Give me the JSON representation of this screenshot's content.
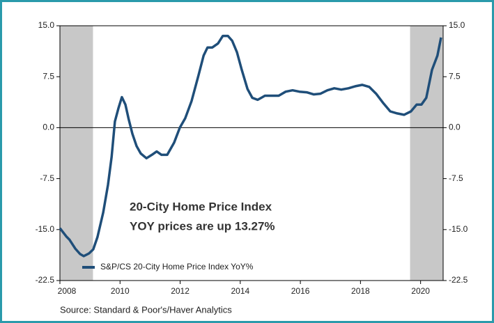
{
  "chart_data": {
    "type": "line",
    "annotation": [
      "20-City Home Price Index",
      "YOY prices are up 13.27%"
    ],
    "source": "Source:  Standard & Poor's/Haver Analytics",
    "x": [
      2008.0,
      2008.21,
      2008.32,
      2008.51,
      2008.67,
      2008.79,
      2008.97,
      2009.11,
      2009.25,
      2009.44,
      2009.6,
      2009.72,
      2009.83,
      2009.95,
      2010.06,
      2010.18,
      2010.29,
      2010.41,
      2010.55,
      2010.69,
      2010.88,
      2011.06,
      2011.22,
      2011.38,
      2011.57,
      2011.8,
      2011.99,
      2012.17,
      2012.38,
      2012.61,
      2012.78,
      2012.91,
      2013.07,
      2013.26,
      2013.42,
      2013.59,
      2013.73,
      2013.89,
      2014.05,
      2014.24,
      2014.4,
      2014.58,
      2014.7,
      2014.82,
      2015.05,
      2015.28,
      2015.51,
      2015.74,
      2015.97,
      2016.21,
      2016.44,
      2016.67,
      2016.9,
      2017.13,
      2017.36,
      2017.6,
      2017.83,
      2018.06,
      2018.29,
      2018.52,
      2018.76,
      2018.99,
      2019.22,
      2019.45,
      2019.68,
      2019.87,
      2020.03,
      2020.19,
      2020.38,
      2020.56,
      2020.68
    ],
    "series": [
      {
        "name": "S&P/CS 20-City Home Price Index YoY%",
        "color": "#1f4e79",
        "values": [
          -14.8,
          -16.0,
          -16.5,
          -17.8,
          -18.6,
          -18.9,
          -18.5,
          -17.9,
          -16.1,
          -12.5,
          -8.4,
          -4.3,
          0.9,
          2.9,
          4.5,
          3.4,
          1.2,
          -0.9,
          -2.7,
          -3.8,
          -4.5,
          -4.0,
          -3.5,
          -4.0,
          -4.0,
          -2.2,
          0.0,
          1.4,
          3.9,
          7.7,
          10.6,
          11.8,
          11.8,
          12.4,
          13.5,
          13.5,
          12.8,
          11.1,
          8.5,
          5.7,
          4.4,
          4.1,
          4.4,
          4.7,
          4.7,
          4.7,
          5.3,
          5.5,
          5.3,
          5.2,
          4.9,
          5.0,
          5.5,
          5.8,
          5.6,
          5.8,
          6.1,
          6.3,
          6.0,
          5.0,
          3.6,
          2.4,
          2.1,
          1.9,
          2.4,
          3.4,
          3.4,
          4.4,
          8.5,
          10.6,
          13.27
        ]
      }
    ],
    "shaded_periods": [
      [
        2008.0,
        2009.1
      ],
      [
        2019.65,
        2020.75
      ]
    ],
    "shade_color": "#c8c8c8",
    "xlim": [
      2008,
      2020.75
    ],
    "xticks": [
      2008,
      2010,
      2012,
      2014,
      2016,
      2018,
      2020
    ],
    "ylim": [
      -22.5,
      15
    ],
    "yticks": [
      {
        "value": -22.5,
        "label": "-22.5"
      },
      {
        "value": -15,
        "label": "-15.0"
      },
      {
        "value": -7.5,
        "label": "-7.5"
      },
      {
        "value": 0,
        "label": "0.0"
      },
      {
        "value": 7.5,
        "label": "7.5"
      },
      {
        "value": 15,
        "label": "15.0"
      }
    ],
    "zero_line": 0
  }
}
